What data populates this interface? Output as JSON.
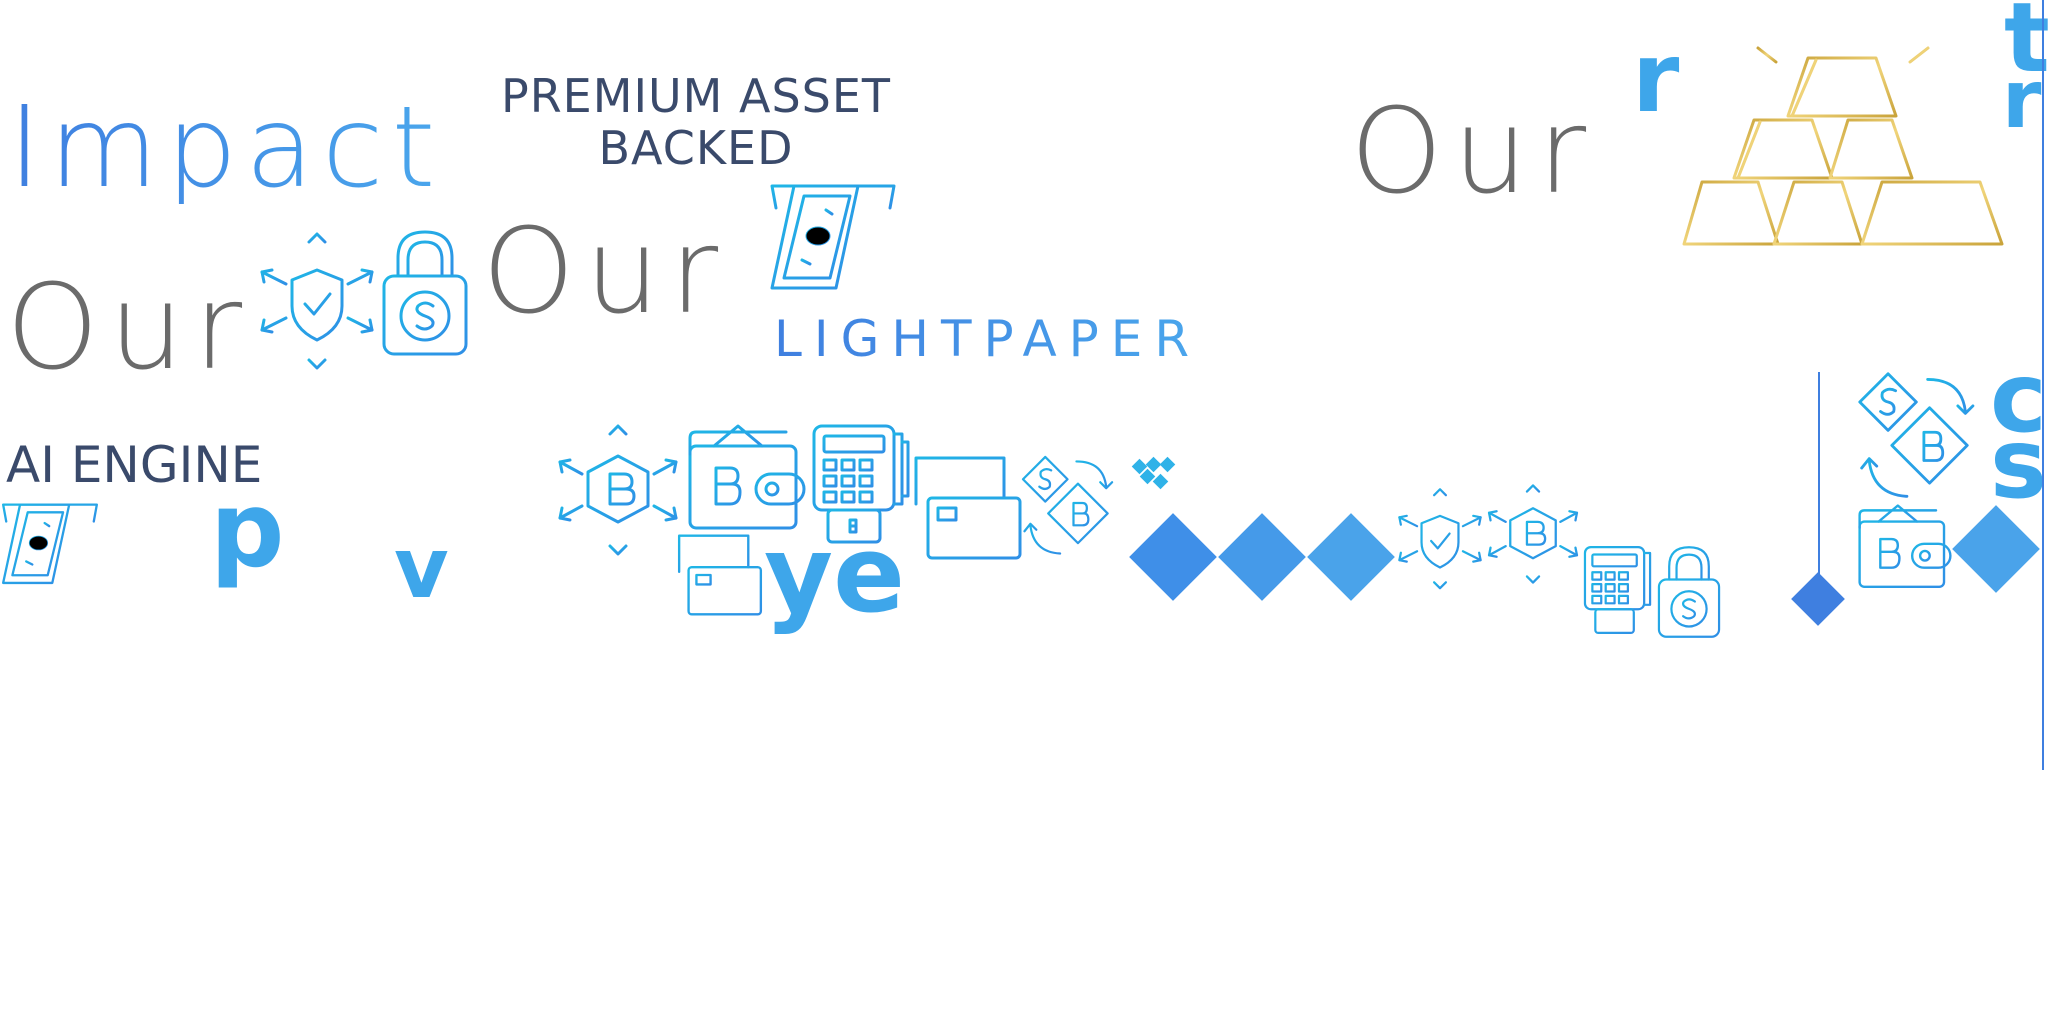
{
  "texts": {
    "impact": "Impact",
    "premium_line1": "PREMIUM ASSET",
    "premium_line2": "BACKED",
    "our_a": "Our",
    "our_b": "Our",
    "our_c": "Our",
    "lightpaper": "LIGHTPAPER",
    "ai_engine": "AI ENGINE",
    "frag_r": "r",
    "frag_t": "t",
    "frag_r2": "r",
    "frag_p": "p",
    "frag_v": "v",
    "frag_ye": "ye",
    "frag_c": "c",
    "frag_s": "s"
  },
  "colors": {
    "accent_blue": "#4a86e3",
    "cyan_icon": "#1fb6e6",
    "gold": "#d4af37",
    "navy_text": "#3a4a6b",
    "gray_text": "#6b6b6b",
    "diamond_blue": "#3f8fe8"
  },
  "icons": [
    "shield-network-icon",
    "lock-dollar-icon",
    "cash-atm-icon",
    "bitcoin-network-icon",
    "bitcoin-wallet-icon",
    "pos-terminal-icon",
    "credit-card-icon",
    "dollar-bitcoin-exchange-icon",
    "gold-bars-icon"
  ]
}
